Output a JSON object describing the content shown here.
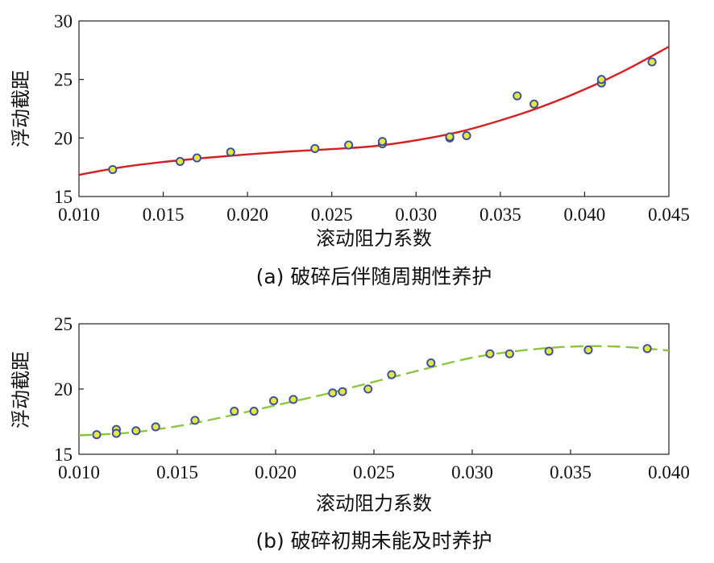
{
  "chart_data": [
    {
      "type": "scatter",
      "caption": "(a)  破碎后伴随周期性养护",
      "xlabel": "滚动阻力系数",
      "ylabel": "浮动截距",
      "xlim": [
        0.01,
        0.045
      ],
      "ylim": [
        15,
        30
      ],
      "xticks": [
        "0.010",
        "0.015",
        "0.020",
        "0.025",
        "0.030",
        "0.035",
        "0.040",
        "0.045"
      ],
      "yticks": [
        "15",
        "20",
        "25",
        "30"
      ],
      "grid": false,
      "colors": {
        "point_fill": "#e6e640",
        "point_edge": "#3a4fa0",
        "fit_line": "#d42020"
      },
      "points": [
        [
          0.012,
          17.3
        ],
        [
          0.016,
          18.0
        ],
        [
          0.017,
          18.3
        ],
        [
          0.019,
          18.8
        ],
        [
          0.024,
          19.1
        ],
        [
          0.026,
          19.4
        ],
        [
          0.028,
          19.5
        ],
        [
          0.028,
          19.7
        ],
        [
          0.032,
          20.0
        ],
        [
          0.032,
          20.1
        ],
        [
          0.033,
          20.2
        ],
        [
          0.036,
          23.6
        ],
        [
          0.037,
          22.9
        ],
        [
          0.041,
          24.7
        ],
        [
          0.041,
          25.0
        ],
        [
          0.044,
          26.5
        ]
      ],
      "fit_curve": [
        [
          0.01,
          16.85
        ],
        [
          0.0125,
          17.5
        ],
        [
          0.015,
          17.95
        ],
        [
          0.0175,
          18.3
        ],
        [
          0.02,
          18.6
        ],
        [
          0.0225,
          18.85
        ],
        [
          0.025,
          19.05
        ],
        [
          0.0275,
          19.3
        ],
        [
          0.03,
          19.8
        ],
        [
          0.0325,
          20.5
        ],
        [
          0.035,
          21.5
        ],
        [
          0.0375,
          22.7
        ],
        [
          0.04,
          24.15
        ],
        [
          0.0425,
          25.85
        ],
        [
          0.045,
          27.8
        ]
      ]
    },
    {
      "type": "scatter",
      "caption": "(b)  破碎初期未能及时养护",
      "xlabel": "滚动阻力系数",
      "ylabel": "浮动截距",
      "xlim": [
        0.01,
        0.04
      ],
      "ylim": [
        15,
        25
      ],
      "xticks": [
        "0.010",
        "0.015",
        "0.020",
        "0.025",
        "0.030",
        "0.035",
        "0.040"
      ],
      "yticks": [
        "15",
        "20",
        "25"
      ],
      "grid": false,
      "colors": {
        "point_fill": "#e6e640",
        "point_edge": "#3a4fa0",
        "fit_line": "#8cc63e"
      },
      "points": [
        [
          0.0109,
          16.5
        ],
        [
          0.0119,
          16.9
        ],
        [
          0.0119,
          16.6
        ],
        [
          0.0129,
          16.8
        ],
        [
          0.0139,
          17.1
        ],
        [
          0.0159,
          17.6
        ],
        [
          0.0179,
          18.3
        ],
        [
          0.0189,
          18.3
        ],
        [
          0.0199,
          19.1
        ],
        [
          0.0209,
          19.2
        ],
        [
          0.0229,
          19.7
        ],
        [
          0.0234,
          19.8
        ],
        [
          0.0247,
          20.0
        ],
        [
          0.0259,
          21.1
        ],
        [
          0.0279,
          22.0
        ],
        [
          0.0309,
          22.7
        ],
        [
          0.0319,
          22.7
        ],
        [
          0.0339,
          22.9
        ],
        [
          0.0359,
          23.0
        ],
        [
          0.0389,
          23.1
        ]
      ],
      "fit_curve": [
        [
          0.01,
          16.45
        ],
        [
          0.0125,
          16.65
        ],
        [
          0.015,
          17.15
        ],
        [
          0.0175,
          17.9
        ],
        [
          0.02,
          18.75
        ],
        [
          0.0225,
          19.6
        ],
        [
          0.025,
          20.55
        ],
        [
          0.0275,
          21.5
        ],
        [
          0.03,
          22.4
        ],
        [
          0.0325,
          22.95
        ],
        [
          0.035,
          23.25
        ],
        [
          0.0375,
          23.25
        ],
        [
          0.04,
          22.95
        ]
      ]
    }
  ]
}
